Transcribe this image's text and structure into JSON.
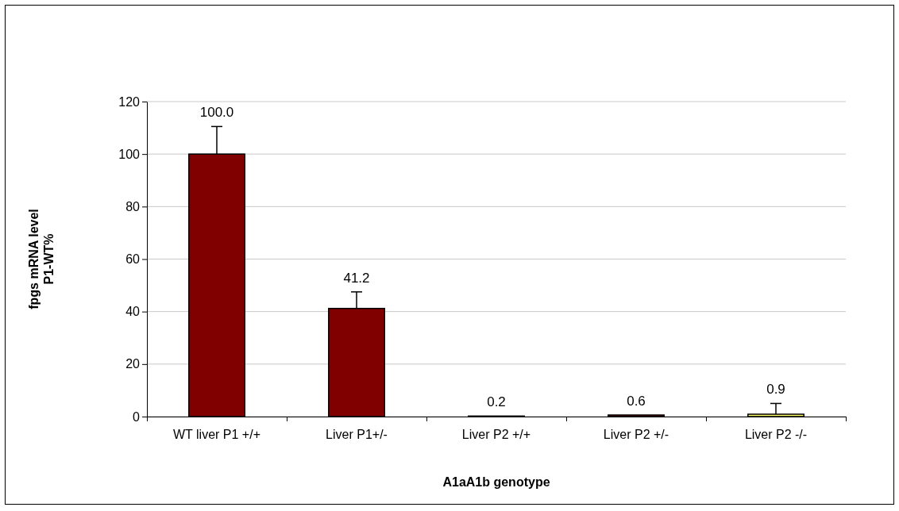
{
  "chart_data": {
    "type": "bar",
    "xlabel": "A1aA1b genotype",
    "ylabel": "fpgs mRNA level\nP1-WT%",
    "categories": [
      "WT liver P1 +/+",
      "Liver P1+/-",
      "Liver  P2 +/+",
      "Liver P2 +/-",
      "Liver P2  -/-"
    ],
    "values": [
      100.0,
      41.2,
      0.2,
      0.6,
      0.9
    ],
    "colors": [
      "#800000",
      "#800000",
      "#800000",
      "#800000",
      "#ffff66"
    ],
    "errors": [
      [
        100.0,
        110.5
      ],
      [
        41.2,
        47.5
      ],
      null,
      null,
      [
        0.9,
        5
      ]
    ],
    "value_labels": [
      "100.0",
      "41.2",
      "0.2",
      "0.6",
      "0.9"
    ],
    "ylim": [
      0,
      120
    ],
    "yticks": [
      0,
      20,
      40,
      60,
      80,
      100,
      120
    ],
    "grid": "y"
  }
}
